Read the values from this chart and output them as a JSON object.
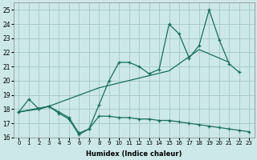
{
  "xlabel": "Humidex (Indice chaleur)",
  "xlim": [
    -0.5,
    23.5
  ],
  "ylim": [
    16,
    25.5
  ],
  "xticks": [
    0,
    1,
    2,
    3,
    4,
    5,
    6,
    7,
    8,
    9,
    10,
    11,
    12,
    13,
    14,
    15,
    16,
    17,
    18,
    19,
    20,
    21,
    22,
    23
  ],
  "yticks": [
    16,
    17,
    18,
    19,
    20,
    21,
    22,
    23,
    24,
    25
  ],
  "bg_color": "#cce8e8",
  "line_color": "#1a6e5e",
  "grid_color": "#aacccc",
  "line1_x": [
    0,
    1,
    2,
    3,
    4,
    5,
    6,
    7,
    8,
    9,
    10,
    11,
    12,
    13,
    14,
    15,
    16,
    17,
    18,
    19,
    20,
    21,
    22
  ],
  "line1_y": [
    17.8,
    18.7,
    18.0,
    18.2,
    17.8,
    17.4,
    16.3,
    16.6,
    18.3,
    20.0,
    21.3,
    21.3,
    21.0,
    20.5,
    20.8,
    24.0,
    23.3,
    21.6,
    22.5,
    25.0,
    22.9,
    21.2,
    20.6
  ],
  "line2_x": [
    0,
    3,
    8,
    15,
    18,
    21
  ],
  "line2_y": [
    17.8,
    18.2,
    19.5,
    20.7,
    22.2,
    21.3
  ],
  "line3_x": [
    0,
    2,
    3,
    4,
    5,
    6,
    7,
    8,
    9,
    10,
    11,
    12,
    13,
    14,
    15,
    16,
    17,
    18,
    19,
    20,
    21,
    22,
    23
  ],
  "line3_y": [
    17.8,
    18.0,
    18.2,
    17.7,
    17.3,
    16.2,
    16.6,
    17.5,
    17.5,
    17.4,
    17.4,
    17.3,
    17.3,
    17.2,
    17.2,
    17.1,
    17.0,
    16.9,
    16.8,
    16.7,
    16.6,
    16.5,
    16.4
  ]
}
